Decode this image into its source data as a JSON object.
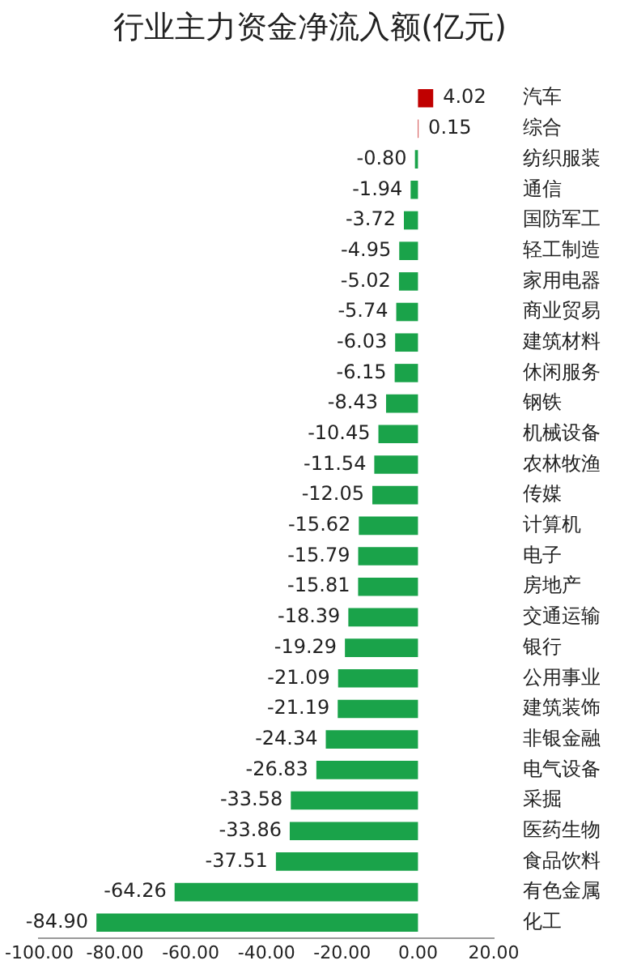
{
  "chart_data": {
    "type": "bar",
    "orientation": "horizontal",
    "title": "行业主力资金净流入额(亿元)",
    "categories": [
      "汽车",
      "综合",
      "纺织服装",
      "通信",
      "国防军工",
      "轻工制造",
      "家用电器",
      "商业贸易",
      "建筑材料",
      "休闲服务",
      "钢铁",
      "机械设备",
      "农林牧渔",
      "传媒",
      "计算机",
      "电子",
      "房地产",
      "交通运输",
      "银行",
      "公用事业",
      "建筑装饰",
      "非银金融",
      "电气设备",
      "采掘",
      "医药生物",
      "食品饮料",
      "有色金属",
      "化工"
    ],
    "values": [
      4.02,
      0.15,
      -0.8,
      -1.94,
      -3.72,
      -4.95,
      -5.02,
      -5.74,
      -6.03,
      -6.15,
      -8.43,
      -10.45,
      -11.54,
      -12.05,
      -15.62,
      -15.79,
      -15.81,
      -18.39,
      -19.29,
      -21.09,
      -21.19,
      -24.34,
      -26.83,
      -33.58,
      -33.86,
      -37.51,
      -64.26,
      -84.9
    ],
    "colors": [
      "#c00000",
      "#c00000",
      "#1aa34a",
      "#1aa34a",
      "#1aa34a",
      "#1aa34a",
      "#1aa34a",
      "#1aa34a",
      "#1aa34a",
      "#1aa34a",
      "#1aa34a",
      "#1aa34a",
      "#1aa34a",
      "#1aa34a",
      "#1aa34a",
      "#1aa34a",
      "#1aa34a",
      "#1aa34a",
      "#1aa34a",
      "#1aa34a",
      "#1aa34a",
      "#1aa34a",
      "#1aa34a",
      "#1aa34a",
      "#1aa34a",
      "#1aa34a",
      "#1aa34a",
      "#1aa34a"
    ],
    "value_labels": [
      "4.02",
      "0.15",
      "-0.80",
      "-1.94",
      "-3.72",
      "-4.95",
      "-5.02",
      "-5.74",
      "-6.03",
      "-6.15",
      "-8.43",
      "-10.45",
      "-11.54",
      "-12.05",
      "-15.62",
      "-15.79",
      "-15.81",
      "-18.39",
      "-19.29",
      "-21.09",
      "-21.19",
      "-24.34",
      "-26.83",
      "-33.58",
      "-33.86",
      "-37.51",
      "-64.26",
      "-84.90"
    ],
    "xlim": [
      -100,
      20
    ],
    "xticks": [
      {
        "value": -100,
        "label": "-100.00"
      },
      {
        "value": -80,
        "label": "-80.00"
      },
      {
        "value": -60,
        "label": "-60.00"
      },
      {
        "value": -40,
        "label": "-40.00"
      },
      {
        "value": -20,
        "label": "-20.00"
      },
      {
        "value": 0,
        "label": "0.00"
      },
      {
        "value": 20,
        "label": "20.00"
      }
    ],
    "grid": false,
    "legend": false
  }
}
